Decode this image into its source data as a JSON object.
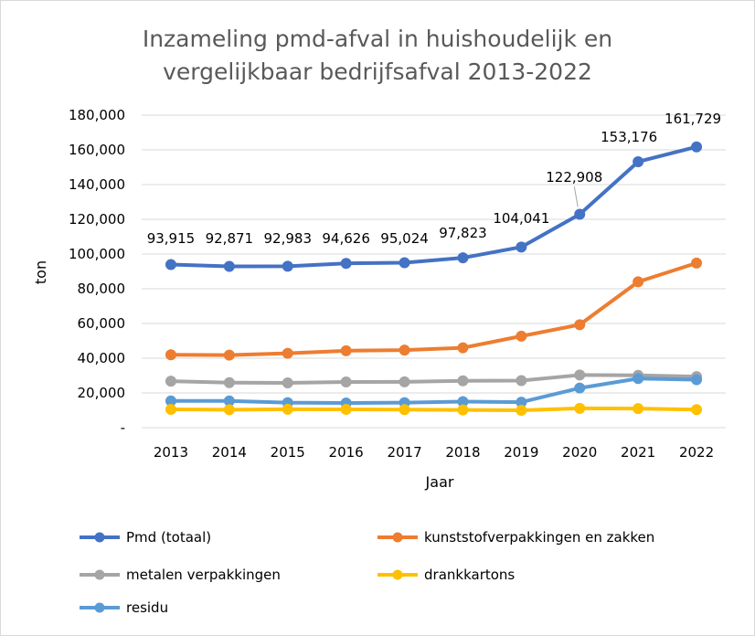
{
  "chart_data": {
    "type": "line",
    "title_lines": [
      "Inzameling pmd-afval in huishoudelijk en",
      "vergelijkbaar bedrijfsafval 2013-2022"
    ],
    "xlabel": "Jaar",
    "ylabel": "ton",
    "categories": [
      "2013",
      "2014",
      "2015",
      "2016",
      "2017",
      "2018",
      "2019",
      "2020",
      "2021",
      "2022"
    ],
    "ylim": [
      0,
      180000
    ],
    "yticks": [
      0,
      20000,
      40000,
      60000,
      80000,
      100000,
      120000,
      140000,
      160000,
      180000
    ],
    "ytick_labels": [
      "-",
      "20,000",
      "40,000",
      "60,000",
      "80,000",
      "100,000",
      "120,000",
      "140,000",
      "160,000",
      "180,000"
    ],
    "grid": true,
    "legend_position": "bottom",
    "series": [
      {
        "name": "Pmd (totaal)",
        "color": "#4472C4",
        "values": [
          93915,
          92871,
          92983,
          94626,
          95024,
          97823,
          104041,
          122908,
          153176,
          161729
        ],
        "labels": [
          "93,915",
          "92,871",
          "92,983",
          "94,626",
          "95,024",
          "97,823",
          "104,041",
          "122,908",
          "153,176",
          "161,729"
        ]
      },
      {
        "name": "kunststofverpakkingen en zakken",
        "color": "#ED7D31",
        "values": [
          42000,
          41800,
          42800,
          44300,
          44700,
          46000,
          52700,
          59300,
          84000,
          94800
        ]
      },
      {
        "name": "metalen verpakkingen",
        "color": "#A5A5A5",
        "values": [
          26800,
          25900,
          25800,
          26300,
          26400,
          27000,
          27100,
          30300,
          30100,
          29400
        ]
      },
      {
        "name": "drankkartons",
        "color": "#FFC000",
        "values": [
          10500,
          10300,
          10600,
          10500,
          10400,
          10200,
          10000,
          11100,
          11000,
          10400
        ]
      },
      {
        "name": "residu",
        "color": "#5B9BD5",
        "values": [
          15400,
          15400,
          14400,
          14200,
          14400,
          15000,
          14700,
          22800,
          28300,
          27600
        ]
      }
    ]
  }
}
